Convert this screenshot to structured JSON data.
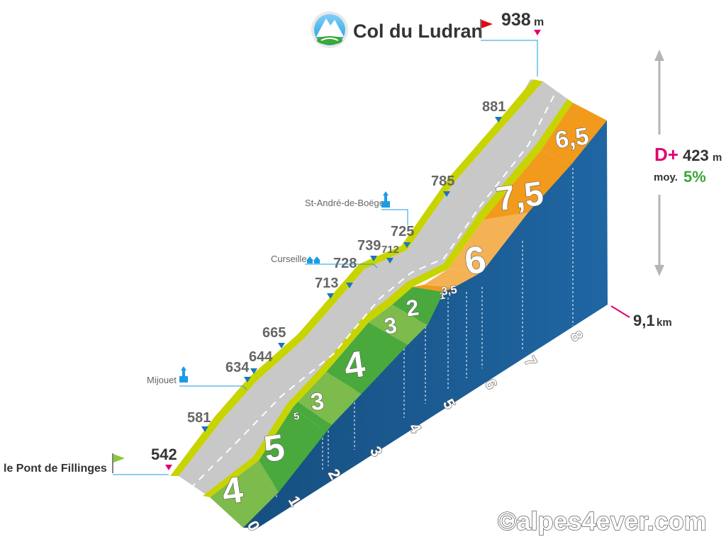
{
  "summit": {
    "name": "Col du Ludran",
    "altitude": "938",
    "unit": "m"
  },
  "start": {
    "name": "le Pont de Fillinges",
    "altitude": "542"
  },
  "stats": {
    "gain_label": "D+",
    "gain_value": "423",
    "gain_unit": "m",
    "avg_label": "moy.",
    "avg_value": "5%"
  },
  "distance": {
    "value": "9,1",
    "unit": "km"
  },
  "towns": [
    {
      "name": "Mijouet"
    },
    {
      "name": "Curseille"
    },
    {
      "name": "St-André-de-Boëge"
    }
  ],
  "altitudes": [
    "581",
    "634",
    "644",
    "665",
    "713",
    "728",
    "739",
    "712",
    "725",
    "785",
    "881"
  ],
  "km_labels": [
    "0",
    "1",
    "2",
    "3",
    "4",
    "5",
    "6",
    "7",
    "8"
  ],
  "gradients": [
    "4",
    "5",
    "5",
    "3",
    "4",
    "3",
    "2",
    "1",
    "3,5",
    "6",
    "7,5",
    "6,5"
  ],
  "copyright": "©alpes4ever.com",
  "colors": {
    "wall": "#1b5d96",
    "road": "#c8c8c8",
    "verge": "#c8d400",
    "grad_light_green": "#7dbb4c",
    "grad_green": "#4aa93d",
    "grad_orange": "#f29a1c",
    "grad_light_orange": "#f5b254",
    "accent_magenta": "#e0006f",
    "accent_green": "#3aa935",
    "icon_blue": "#1d9be3"
  }
}
